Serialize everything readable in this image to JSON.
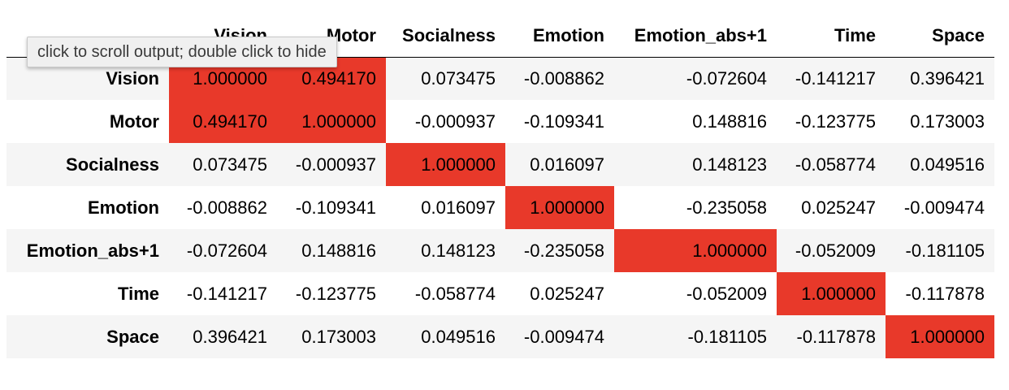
{
  "tooltip": "click to scroll output; double click to hide",
  "colors": {
    "highlight": "#e8392a",
    "stripe": "#f5f5f5"
  },
  "columns": [
    "Vision",
    "Motor",
    "Socialness",
    "Emotion",
    "Emotion_abs+1",
    "Time",
    "Space"
  ],
  "rows": [
    {
      "label": "Vision",
      "values": [
        "1.000000",
        "0.494170",
        "0.073475",
        "-0.008862",
        "-0.072604",
        "-0.141217",
        "0.396421"
      ],
      "highlight": [
        true,
        true,
        false,
        false,
        false,
        false,
        false
      ]
    },
    {
      "label": "Motor",
      "values": [
        "0.494170",
        "1.000000",
        "-0.000937",
        "-0.109341",
        "0.148816",
        "-0.123775",
        "0.173003"
      ],
      "highlight": [
        true,
        true,
        false,
        false,
        false,
        false,
        false
      ]
    },
    {
      "label": "Socialness",
      "values": [
        "0.073475",
        "-0.000937",
        "1.000000",
        "0.016097",
        "0.148123",
        "-0.058774",
        "0.049516"
      ],
      "highlight": [
        false,
        false,
        true,
        false,
        false,
        false,
        false
      ]
    },
    {
      "label": "Emotion",
      "values": [
        "-0.008862",
        "-0.109341",
        "0.016097",
        "1.000000",
        "-0.235058",
        "0.025247",
        "-0.009474"
      ],
      "highlight": [
        false,
        false,
        false,
        true,
        false,
        false,
        false
      ]
    },
    {
      "label": "Emotion_abs+1",
      "values": [
        "-0.072604",
        "0.148816",
        "0.148123",
        "-0.235058",
        "1.000000",
        "-0.052009",
        "-0.181105"
      ],
      "highlight": [
        false,
        false,
        false,
        false,
        true,
        false,
        false
      ]
    },
    {
      "label": "Time",
      "values": [
        "-0.141217",
        "-0.123775",
        "-0.058774",
        "0.025247",
        "-0.052009",
        "1.000000",
        "-0.117878"
      ],
      "highlight": [
        false,
        false,
        false,
        false,
        false,
        true,
        false
      ]
    },
    {
      "label": "Space",
      "values": [
        "0.396421",
        "0.173003",
        "0.049516",
        "-0.009474",
        "-0.181105",
        "-0.117878",
        "1.000000"
      ],
      "highlight": [
        false,
        false,
        false,
        false,
        false,
        false,
        true
      ]
    }
  ]
}
